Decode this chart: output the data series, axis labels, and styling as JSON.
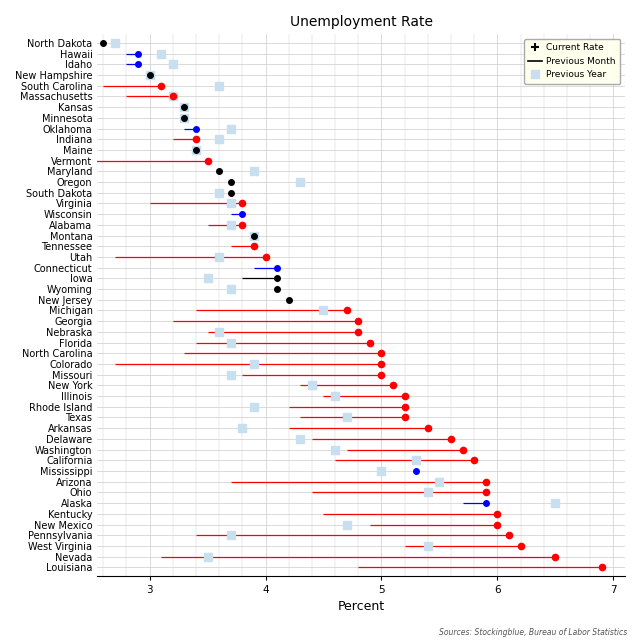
{
  "title": "Unemployment Rate",
  "xlabel": "Percent",
  "source_text": "Sources: Stockingblue, Bureau of Labor Statistics",
  "xlim": [
    2.55,
    7.1
  ],
  "xticks": [
    3,
    4,
    5,
    6,
    7
  ],
  "states": [
    "North Dakota",
    "Hawaii",
    "Idaho",
    "New Hampshire",
    "South Carolina",
    "Massachusetts",
    "Kansas",
    "Minnesota",
    "Oklahoma",
    "Indiana",
    "Maine",
    "Vermont",
    "Maryland",
    "Oregon",
    "South Dakota",
    "Virginia",
    "Wisconsin",
    "Alabama",
    "Montana",
    "Tennessee",
    "Utah",
    "Connecticut",
    "Iowa",
    "Wyoming",
    "New Jersey",
    "Michigan",
    "Georgia",
    "Nebraska",
    "Florida",
    "North Carolina",
    "Colorado",
    "Missouri",
    "New York",
    "Illinois",
    "Rhode Island",
    "Texas",
    "Arkansas",
    "Delaware",
    "Washington",
    "California",
    "Mississippi",
    "Arizona",
    "Ohio",
    "Alaska",
    "Kentucky",
    "New Mexico",
    "Pennsylvania",
    "West Virginia",
    "Nevada",
    "Louisiana"
  ],
  "current_rate": [
    2.6,
    2.9,
    2.9,
    3.0,
    3.1,
    3.2,
    3.3,
    3.3,
    3.4,
    3.4,
    3.4,
    3.5,
    3.6,
    3.7,
    3.7,
    3.8,
    3.8,
    3.8,
    3.9,
    3.9,
    4.0,
    4.1,
    4.1,
    4.1,
    4.2,
    4.7,
    4.8,
    4.8,
    4.9,
    5.0,
    5.0,
    5.0,
    5.1,
    5.2,
    5.2,
    5.2,
    5.4,
    5.6,
    5.7,
    5.8,
    5.3,
    5.9,
    5.9,
    5.9,
    6.0,
    6.0,
    6.1,
    6.2,
    6.5,
    6.9
  ],
  "prev_month": [
    2.6,
    2.8,
    2.8,
    3.0,
    2.6,
    2.8,
    3.3,
    3.3,
    3.3,
    3.2,
    3.4,
    2.5,
    3.6,
    3.7,
    3.7,
    3.0,
    3.7,
    3.5,
    3.9,
    3.7,
    2.7,
    3.9,
    3.8,
    4.1,
    4.2,
    3.4,
    3.2,
    3.5,
    3.4,
    3.3,
    2.7,
    3.8,
    4.3,
    4.5,
    4.2,
    4.3,
    4.2,
    4.4,
    4.7,
    4.6,
    5.3,
    3.7,
    4.4,
    5.7,
    4.5,
    4.9,
    3.4,
    5.2,
    3.1,
    4.8
  ],
  "prev_year": [
    2.7,
    3.1,
    3.2,
    3.0,
    3.6,
    3.2,
    3.3,
    3.3,
    3.7,
    3.6,
    3.4,
    null,
    3.9,
    4.3,
    3.6,
    3.7,
    null,
    3.7,
    3.9,
    null,
    3.6,
    null,
    3.5,
    3.7,
    null,
    4.5,
    null,
    3.6,
    3.7,
    null,
    3.9,
    3.7,
    4.4,
    4.6,
    3.9,
    4.7,
    3.8,
    4.3,
    4.6,
    5.3,
    5.0,
    5.5,
    5.4,
    6.5,
    null,
    4.7,
    3.7,
    5.4,
    3.5,
    null
  ],
  "dot_color": [
    "black",
    "blue",
    "blue",
    "black",
    "red",
    "red",
    "black",
    "black",
    "blue",
    "red",
    "black",
    "red",
    "black",
    "black",
    "black",
    "red",
    "blue",
    "red",
    "black",
    "red",
    "red",
    "blue",
    "black",
    "black",
    "black",
    "red",
    "red",
    "red",
    "red",
    "red",
    "red",
    "red",
    "red",
    "red",
    "red",
    "red",
    "red",
    "red",
    "red",
    "red",
    "blue",
    "red",
    "red",
    "blue",
    "red",
    "red",
    "red",
    "red",
    "red",
    "red"
  ],
  "prev_year_color": "#c8dff0",
  "grid_color": "#cccccc",
  "bg_color": "white",
  "legend_bg": "#ffffee",
  "title_fontsize": 10,
  "label_fontsize": 7,
  "tick_fontsize": 7.5,
  "source_fontsize": 5.5
}
